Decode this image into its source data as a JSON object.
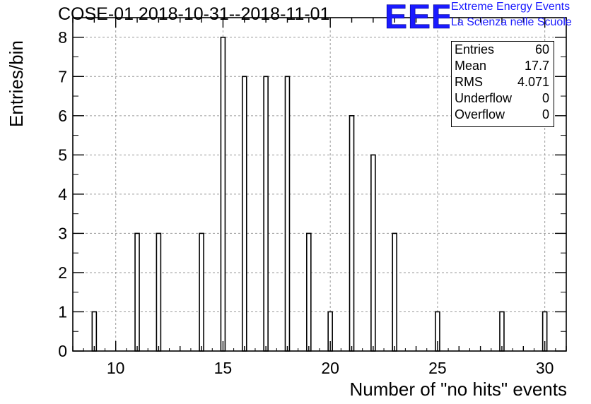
{
  "title": "COSE-01 2018-10-31--2018-11-01",
  "logo": {
    "letters": "EEE",
    "line1": "Extreme Energy Events",
    "line2": "La Scienza nelle Scuole",
    "color": "#1a1aff"
  },
  "stats": [
    {
      "key": "Entries",
      "value": "60"
    },
    {
      "key": "Mean",
      "value": "17.7"
    },
    {
      "key": "RMS",
      "value": "4.071"
    },
    {
      "key": "Underflow",
      "value": "0"
    },
    {
      "key": "Overflow",
      "value": "0"
    }
  ],
  "chart_data": {
    "type": "bar",
    "xlabel": "Number of \"no hits\" events",
    "ylabel": "Entries/bin",
    "xlim": [
      8,
      31
    ],
    "ylim": [
      0,
      8.5
    ],
    "grid": true,
    "x_ticks": [
      10,
      15,
      20,
      25,
      30
    ],
    "y_ticks": [
      0,
      1,
      2,
      3,
      4,
      5,
      6,
      7,
      8
    ],
    "bars": [
      {
        "x": 9,
        "value": 1
      },
      {
        "x": 11,
        "value": 3
      },
      {
        "x": 12,
        "value": 3
      },
      {
        "x": 14,
        "value": 3
      },
      {
        "x": 15,
        "value": 8
      },
      {
        "x": 16,
        "value": 7
      },
      {
        "x": 17,
        "value": 7
      },
      {
        "x": 18,
        "value": 7
      },
      {
        "x": 19,
        "value": 3
      },
      {
        "x": 20,
        "value": 1
      },
      {
        "x": 21,
        "value": 6
      },
      {
        "x": 22,
        "value": 5
      },
      {
        "x": 23,
        "value": 3
      },
      {
        "x": 25,
        "value": 1
      },
      {
        "x": 28,
        "value": 1
      },
      {
        "x": 30,
        "value": 1
      }
    ]
  }
}
